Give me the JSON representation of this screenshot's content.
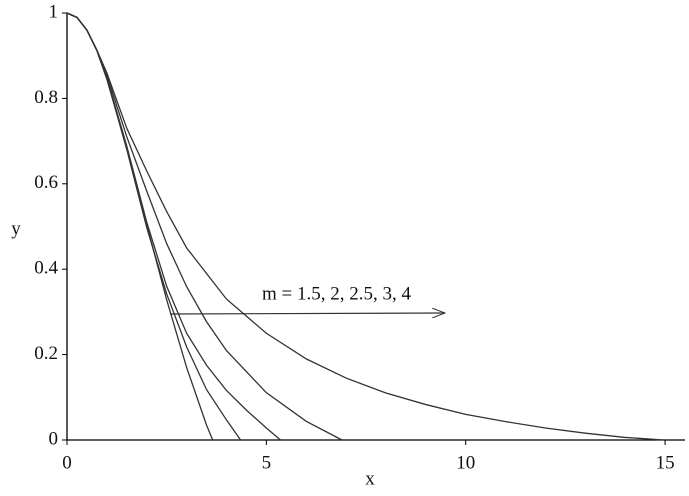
{
  "chart_data": {
    "type": "line",
    "xlabel": "x",
    "ylabel": "y",
    "annotation": "m = 1.5,  2,  2.5,  3,  4",
    "xlim": [
      0,
      15.5
    ],
    "ylim": [
      0,
      1
    ],
    "xticks": [
      0,
      5,
      10,
      15
    ],
    "yticks": [
      0,
      0.2,
      0.4,
      0.6,
      0.8,
      1
    ],
    "series": [
      {
        "color": "#333333",
        "x": [
          0,
          0.25,
          0.5,
          0.75,
          1,
          1.5,
          2,
          2.5,
          3,
          3.5,
          3.6538
        ],
        "values": [
          1,
          0.9896,
          0.9597,
          0.9118,
          0.8451,
          0.684,
          0.504,
          0.3283,
          0.17,
          0.0349,
          0
        ]
      },
      {
        "color": "#333333",
        "x": [
          0,
          0.25,
          0.5,
          0.75,
          1,
          1.5,
          2,
          2.5,
          3,
          3.5,
          4,
          4.3529
        ],
        "values": [
          1,
          0.9896,
          0.9596,
          0.912,
          0.846,
          0.68,
          0.4975,
          0.342,
          0.218,
          0.118,
          0.047,
          0
        ]
      },
      {
        "color": "#333333",
        "x": [
          0,
          0.25,
          0.5,
          0.75,
          1,
          1.5,
          2,
          2.5,
          3,
          3.5,
          4,
          4.5,
          5,
          5.3553
        ],
        "values": [
          1,
          0.9897,
          0.9598,
          0.9125,
          0.8485,
          0.688,
          0.51,
          0.36,
          0.25,
          0.175,
          0.116,
          0.07,
          0.028,
          0
        ]
      },
      {
        "color": "#333333",
        "x": [
          0,
          0.25,
          0.5,
          0.75,
          1,
          1.5,
          2,
          2.5,
          3,
          3.5,
          4,
          5,
          6,
          6.8968
        ],
        "values": [
          1,
          0.9897,
          0.96,
          0.9128,
          0.8546,
          0.71,
          0.5829,
          0.46,
          0.3592,
          0.277,
          0.2093,
          0.1108,
          0.0437,
          0
        ]
      },
      {
        "color": "#333333",
        "x": [
          0,
          0.25,
          0.5,
          0.75,
          1,
          1.5,
          2,
          2.5,
          3,
          4,
          5,
          6,
          7,
          8,
          9,
          10,
          11,
          12,
          13,
          14,
          14.9715
        ],
        "values": [
          1,
          0.9897,
          0.9601,
          0.913,
          0.8596,
          0.73,
          0.63,
          0.535,
          0.45,
          0.33,
          0.25,
          0.19,
          0.145,
          0.11,
          0.083,
          0.06,
          0.043,
          0.028,
          0.016,
          0.006,
          0
        ]
      }
    ]
  }
}
